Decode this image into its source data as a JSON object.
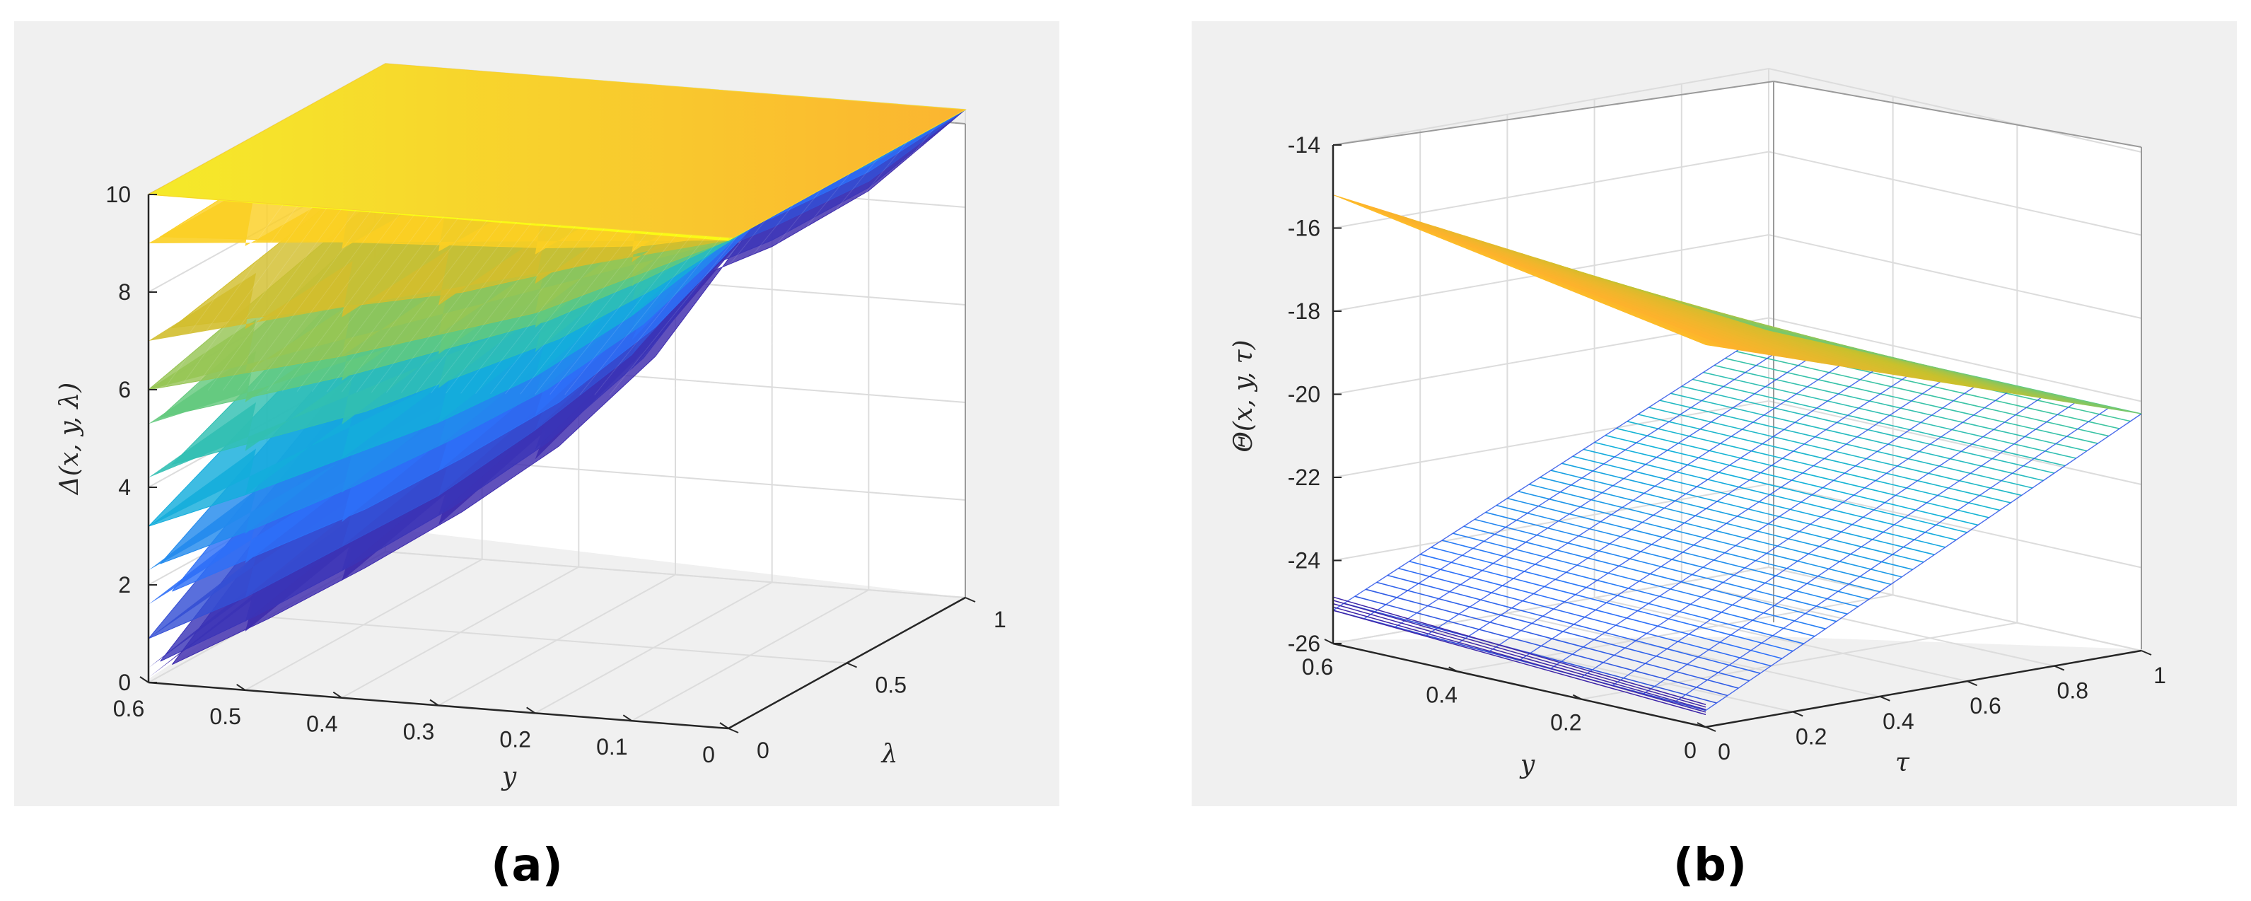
{
  "chart_data": [
    {
      "panel": "a",
      "panel_label": "(a)",
      "type": "surface3d",
      "xlabel": "y",
      "ylabel": "λ",
      "zlabel": "Δ(x, y, λ)",
      "x_ticks": [
        "0.6",
        "0.5",
        "0.4",
        "0.3",
        "0.2",
        "0.1",
        "0"
      ],
      "y_ticks": [
        "0",
        "0.5",
        "1"
      ],
      "z_ticks": [
        "0",
        "2",
        "4",
        "6",
        "8",
        "10"
      ],
      "xlim": [
        0,
        0.6
      ],
      "ylim": [
        0,
        1
      ],
      "zlim": [
        0,
        10
      ],
      "colormap": [
        "#3e26a8",
        "#2c72fa",
        "#12b2d9",
        "#4dcb8e",
        "#c7c12d",
        "#fdb22c",
        "#f9fb15"
      ],
      "series": [
        {
          "level": 10,
          "values": [
            10,
            10,
            10,
            10,
            10,
            10,
            10
          ]
        },
        {
          "level": 9,
          "values": [
            9,
            9.1,
            9.2,
            9.3,
            9.4,
            9.6,
            10
          ]
        },
        {
          "level": 7,
          "values": [
            7,
            7.4,
            7.8,
            8.2,
            8.8,
            9.4,
            10
          ]
        },
        {
          "level": 6,
          "values": [
            6,
            6.5,
            7.0,
            7.6,
            8.2,
            9.1,
            10
          ]
        },
        {
          "level": 5.3,
          "values": [
            5.3,
            5.9,
            6.5,
            7.2,
            7.9,
            8.9,
            10
          ]
        },
        {
          "level": 4.2,
          "values": [
            4.2,
            4.9,
            5.6,
            6.5,
            7.4,
            8.6,
            10
          ]
        },
        {
          "level": 3.2,
          "values": [
            3.2,
            4.0,
            4.9,
            5.8,
            6.9,
            8.3,
            10
          ]
        },
        {
          "level": 2.3,
          "values": [
            2.3,
            3.2,
            4.2,
            5.3,
            6.5,
            8.0,
            10
          ]
        },
        {
          "level": 1.6,
          "values": [
            1.6,
            2.6,
            3.6,
            4.8,
            6.1,
            7.8,
            10
          ]
        },
        {
          "level": 0.9,
          "values": [
            0.9,
            1.9,
            3.1,
            4.3,
            5.8,
            7.5,
            10
          ]
        },
        {
          "level": 0.3,
          "values": [
            0.3,
            1.4,
            2.6,
            3.9,
            5.4,
            7.3,
            10
          ]
        },
        {
          "level": 0.1,
          "values": [
            0.1,
            1.2,
            2.4,
            3.7,
            5.2,
            7.2,
            10
          ]
        }
      ]
    },
    {
      "panel": "b",
      "panel_label": "(b)",
      "type": "surface3d",
      "xlabel": "y",
      "ylabel": "τ",
      "zlabel": "Θ(x, y, τ)",
      "x_ticks": [
        "0.6",
        "0.4",
        "0.2",
        "0"
      ],
      "y_ticks": [
        "0",
        "0.2",
        "0.4",
        "0.6",
        "0.8",
        "1"
      ],
      "z_ticks": [
        "-26",
        "-24",
        "-22",
        "-20",
        "-18",
        "-16",
        "-14"
      ],
      "xlim": [
        0,
        0.6
      ],
      "ylim": [
        0,
        1
      ],
      "zlim": [
        -26,
        -14
      ],
      "colormap": [
        "#3e26a8",
        "#2c72fa",
        "#12b2d9",
        "#4dcb8e",
        "#c7c12d",
        "#fdb22c",
        "#f9fb15"
      ],
      "surfaces": [
        {
          "name": "",
          "corner_values": {
            "y0.6_tau0": -15.2,
            "y0_tau0": -16.8,
            "y0.6_tau1": -20.3,
            "y0_tau1": -20.3
          }
        },
        {
          "name": "",
          "corner_values": {
            "y0.6_tau0": -25.2,
            "y0_tau0": -25.6,
            "y0.6_tau1": -20.3,
            "y0_tau1": -20.3
          }
        }
      ]
    }
  ]
}
